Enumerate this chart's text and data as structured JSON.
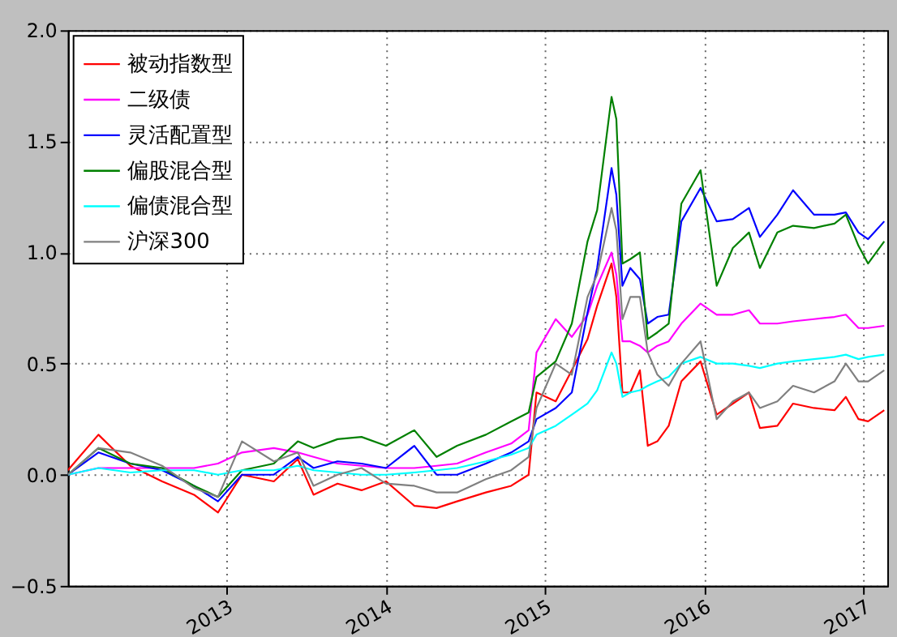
{
  "chart_data": {
    "type": "line",
    "grid": true,
    "legend": "top left",
    "line_style": "solid",
    "marker": "none",
    "x": [
      "2012-01-04",
      "2012-03-14",
      "2012-05-26",
      "2012-08-07",
      "2012-10-19",
      "2012-12-13",
      "2013-02-06",
      "2013-04-20",
      "2013-06-14",
      "2013-07-20",
      "2013-09-13",
      "2013-11-07",
      "2014-01-02",
      "2014-03-08",
      "2014-04-28",
      "2014-06-14",
      "2014-08-19",
      "2014-10-16",
      "2014-11-25",
      "2014-12-13",
      "2015-01-26",
      "2015-03-04",
      "2015-04-09",
      "2015-05-01",
      "2015-06-03",
      "2015-06-14",
      "2015-06-28",
      "2015-07-16",
      "2015-08-07",
      "2015-08-25",
      "2015-09-16",
      "2015-10-12",
      "2015-11-10",
      "2015-12-24",
      "2016-01-30",
      "2016-03-07",
      "2016-04-13",
      "2016-05-08",
      "2016-06-17",
      "2016-07-23",
      "2016-09-09",
      "2016-10-26",
      "2016-11-21",
      "2016-12-20",
      "2017-01-11",
      "2017-02-17"
    ],
    "xlim": [
      "2012-01-04",
      "2017-02-24"
    ],
    "xticks": [
      {
        "value": "2013",
        "label": "2013"
      },
      {
        "value": "2014",
        "label": "2014"
      },
      {
        "value": "2015",
        "label": "2015"
      },
      {
        "value": "2016",
        "label": "2016"
      },
      {
        "value": "2017",
        "label": "2017"
      }
    ],
    "ylim": [
      -0.5,
      2.0
    ],
    "yticks": [
      -0.5,
      {
        "value": 0,
        "label": "0.0"
      },
      0.5,
      {
        "value": 1,
        "label": "1.0"
      },
      1.5,
      {
        "value": 2,
        "label": "2.0"
      }
    ],
    "series": [
      {
        "name": "被动指数型",
        "color": "#ff0000",
        "values": [
          0.02,
          0.18,
          0.04,
          -0.03,
          -0.09,
          -0.17,
          0.0,
          -0.03,
          0.07,
          -0.09,
          -0.04,
          -0.07,
          -0.03,
          -0.14,
          -0.15,
          -0.12,
          -0.08,
          -0.05,
          0.0,
          0.37,
          0.33,
          0.47,
          0.61,
          0.76,
          0.95,
          0.8,
          0.37,
          0.37,
          0.47,
          0.13,
          0.15,
          0.22,
          0.42,
          0.51,
          0.27,
          0.32,
          0.37,
          0.21,
          0.22,
          0.32,
          0.3,
          0.29,
          0.35,
          0.25,
          0.24,
          0.29
        ]
      },
      {
        "name": "二级债",
        "color": "#ff00ff",
        "values": [
          0.0,
          0.03,
          0.03,
          0.03,
          0.03,
          0.05,
          0.1,
          0.12,
          0.1,
          0.08,
          0.05,
          0.04,
          0.03,
          0.03,
          0.04,
          0.05,
          0.1,
          0.14,
          0.2,
          0.55,
          0.7,
          0.62,
          0.72,
          0.85,
          1.0,
          0.9,
          0.6,
          0.6,
          0.58,
          0.55,
          0.58,
          0.6,
          0.68,
          0.77,
          0.72,
          0.72,
          0.74,
          0.68,
          0.68,
          0.69,
          0.7,
          0.71,
          0.72,
          0.66,
          0.66,
          0.67
        ]
      },
      {
        "name": "灵活配置型",
        "color": "#0000ff",
        "values": [
          0.0,
          0.1,
          0.05,
          0.02,
          -0.05,
          -0.12,
          0.0,
          0.0,
          0.08,
          0.03,
          0.06,
          0.05,
          0.03,
          0.13,
          0.0,
          0.0,
          0.05,
          0.1,
          0.15,
          0.25,
          0.3,
          0.37,
          0.73,
          0.93,
          1.38,
          1.26,
          0.85,
          0.93,
          0.88,
          0.68,
          0.71,
          0.72,
          1.14,
          1.29,
          1.14,
          1.15,
          1.2,
          1.07,
          1.17,
          1.28,
          1.17,
          1.17,
          1.18,
          1.09,
          1.06,
          1.14
        ]
      },
      {
        "name": "偏股混合型",
        "color": "#008000",
        "values": [
          0.0,
          0.12,
          0.05,
          0.03,
          -0.05,
          -0.1,
          0.02,
          0.05,
          0.15,
          0.12,
          0.16,
          0.17,
          0.13,
          0.2,
          0.08,
          0.13,
          0.18,
          0.24,
          0.28,
          0.44,
          0.51,
          0.68,
          1.05,
          1.19,
          1.7,
          1.6,
          0.95,
          0.97,
          1.0,
          0.61,
          0.64,
          0.68,
          1.22,
          1.37,
          0.85,
          1.02,
          1.09,
          0.93,
          1.09,
          1.12,
          1.11,
          1.13,
          1.17,
          1.03,
          0.95,
          1.05
        ]
      },
      {
        "name": "偏债混合型",
        "color": "#00ffff",
        "values": [
          0.0,
          0.03,
          0.01,
          0.02,
          0.02,
          0.0,
          0.02,
          0.02,
          0.04,
          0.02,
          0.01,
          0.0,
          0.0,
          0.01,
          0.02,
          0.03,
          0.06,
          0.09,
          0.12,
          0.18,
          0.22,
          0.27,
          0.32,
          0.38,
          0.55,
          0.5,
          0.35,
          0.37,
          0.38,
          0.4,
          0.42,
          0.44,
          0.5,
          0.53,
          0.5,
          0.5,
          0.49,
          0.48,
          0.5,
          0.51,
          0.52,
          0.53,
          0.54,
          0.52,
          0.53,
          0.54
        ]
      },
      {
        "name": "沪深300",
        "color": "#808080",
        "values": [
          0.0,
          0.12,
          0.1,
          0.04,
          -0.06,
          -0.1,
          0.15,
          0.06,
          0.1,
          -0.05,
          0.0,
          0.03,
          -0.04,
          -0.05,
          -0.08,
          -0.08,
          -0.02,
          0.02,
          0.08,
          0.3,
          0.5,
          0.45,
          0.8,
          0.9,
          1.2,
          1.1,
          0.7,
          0.8,
          0.8,
          0.55,
          0.45,
          0.4,
          0.5,
          0.6,
          0.25,
          0.33,
          0.37,
          0.3,
          0.33,
          0.4,
          0.37,
          0.42,
          0.5,
          0.42,
          0.42,
          0.47
        ]
      }
    ]
  }
}
